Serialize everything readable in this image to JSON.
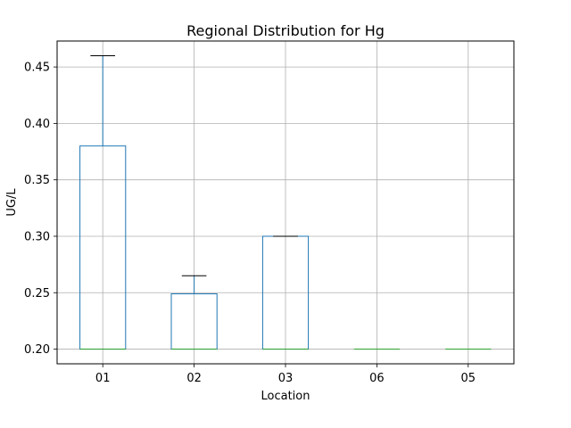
{
  "chart_data": {
    "type": "box",
    "title": "Regional Distribution for Hg",
    "xlabel": "Location",
    "ylabel": "UG/L",
    "categories": [
      "01",
      "02",
      "03",
      "06",
      "05"
    ],
    "boxes": [
      {
        "category": "01",
        "whisker_low": 0.2,
        "q1": 0.2,
        "median": 0.2,
        "q3": 0.38,
        "whisker_high": 0.46
      },
      {
        "category": "02",
        "whisker_low": 0.2,
        "q1": 0.2,
        "median": 0.2,
        "q3": 0.249,
        "whisker_high": 0.265
      },
      {
        "category": "03",
        "whisker_low": 0.2,
        "q1": 0.2,
        "median": 0.2,
        "q3": 0.3,
        "whisker_high": 0.3
      },
      {
        "category": "06",
        "whisker_low": 0.2,
        "q1": 0.2,
        "median": 0.2,
        "q3": 0.2,
        "whisker_high": 0.2
      },
      {
        "category": "05",
        "whisker_low": 0.2,
        "q1": 0.2,
        "median": 0.2,
        "q3": 0.2,
        "whisker_high": 0.2
      }
    ],
    "yticks": [
      "0.20",
      "0.25",
      "0.30",
      "0.35",
      "0.40",
      "0.45"
    ],
    "ylim": [
      0.187,
      0.473
    ],
    "grid": true,
    "colors": {
      "box": "#1f77b4",
      "median": "#2ca02c",
      "whisker_cap": "#000000",
      "grid": "#b0b0b0"
    }
  }
}
